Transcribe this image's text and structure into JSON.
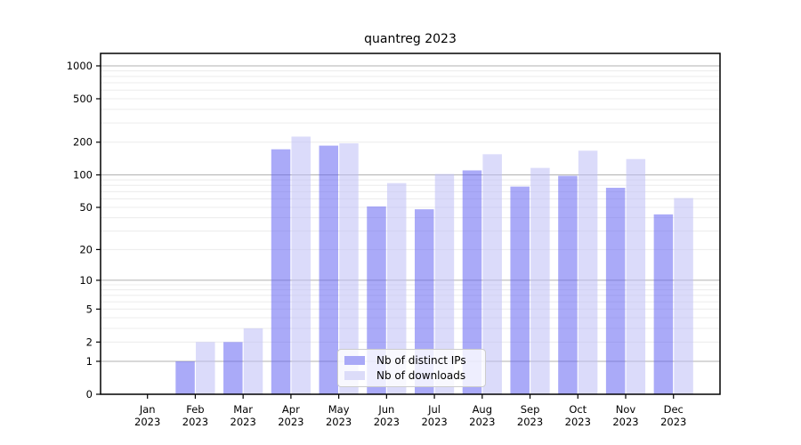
{
  "chart_data": {
    "type": "bar",
    "title": "quantreg 2023",
    "categories": [
      "Jan 2023",
      "Feb 2023",
      "Mar 2023",
      "Apr 2023",
      "May 2023",
      "Jun 2023",
      "Jul 2023",
      "Aug 2023",
      "Sep 2023",
      "Oct 2023",
      "Nov 2023",
      "Dec 2023"
    ],
    "month_labels": [
      "Jan",
      "Feb",
      "Mar",
      "Apr",
      "May",
      "Jun",
      "Jul",
      "Aug",
      "Sep",
      "Oct",
      "Nov",
      "Dec"
    ],
    "year_label": "2023",
    "series": [
      {
        "name": "Nb of distinct IPs",
        "values": [
          0,
          1,
          2,
          172,
          186,
          51,
          48,
          110,
          78,
          98,
          76,
          43
        ],
        "fill": "rgba(92,92,242,0.52)",
        "legend_color": "#a9a9f7"
      },
      {
        "name": "Nb of downloads",
        "values": [
          0,
          2,
          3,
          225,
          195,
          84,
          102,
          155,
          116,
          167,
          140,
          61
        ],
        "fill": "rgba(190,190,245,0.55)",
        "legend_color": "#dcdcf9"
      }
    ],
    "yscale": "log1p",
    "ylim": [
      0,
      1300
    ],
    "yticks": [
      0,
      1,
      2,
      5,
      10,
      20,
      50,
      100,
      200,
      500,
      1000
    ],
    "major_gridline_values": [
      1,
      10,
      100,
      1000
    ],
    "grid": {
      "minor_color": "#ececec",
      "major_color": "#b2b2b2"
    },
    "legend_position": "lower center",
    "xlabel": "",
    "ylabel": ""
  }
}
